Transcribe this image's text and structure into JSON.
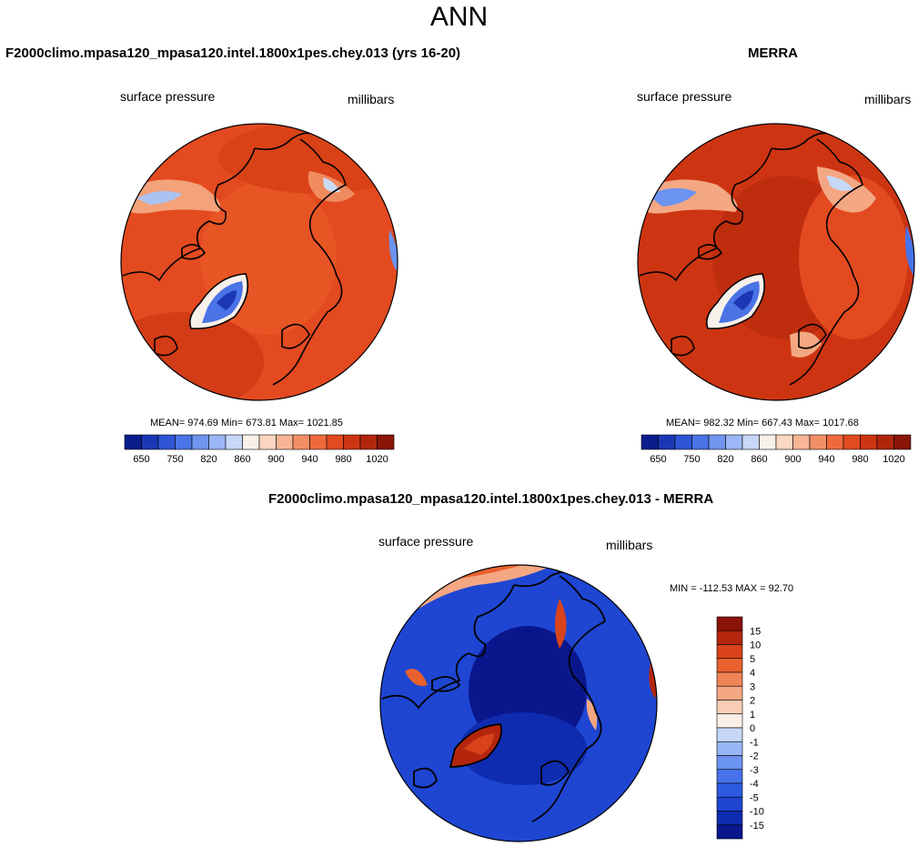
{
  "page": {
    "title": "ANN"
  },
  "panels": {
    "model": {
      "title": "F2000climo.mpasa120_mpasa120.intel.1800x1pes.chey.013 (yrs 16-20)",
      "left_label": "surface pressure",
      "right_label": "millibars",
      "stats": "MEAN= 974.69  Min= 673.81  Max= 1021.85"
    },
    "obs": {
      "title": "MERRA",
      "left_label": "surface pressure",
      "right_label": "millibars",
      "stats": "MEAN= 982.32  Min= 667.43  Max= 1017.68"
    },
    "diff": {
      "title": "F2000climo.mpasa120_mpasa120.intel.1800x1pes.chey.013 - MERRA",
      "left_label": "surface pressure",
      "right_label": "millibars",
      "stats": "MIN = -112.53 MAX =  92.70"
    }
  },
  "colors": {
    "abs_scale": [
      "#0b1d8c",
      "#1b37b5",
      "#2e55d6",
      "#4a73e6",
      "#7095ee",
      "#9ab6f4",
      "#c7d7f7",
      "#f8f1ea",
      "#fbd6c1",
      "#f7b595",
      "#f38f66",
      "#ee6a3d",
      "#e34a20",
      "#cd3512",
      "#b0260c",
      "#8a1608"
    ],
    "diff_scale": [
      "#0a168c",
      "#0f2cb0",
      "#1e46d2",
      "#2d5ae0",
      "#4672ea",
      "#6b93f0",
      "#98b6f4",
      "#c6d8f8",
      "#fbeee6",
      "#f9cdb5",
      "#f4a783",
      "#ef8457",
      "#e9612f",
      "#d9431b",
      "#b4250e",
      "#8a1206"
    ],
    "land_outline": "#000000"
  },
  "chart_data": [
    {
      "type": "heatmap",
      "name": "model",
      "projection": "north polar stereographic",
      "title": "F2000climo.mpasa120_mpasa120.intel.1800x1pes.chey.013 (yrs 16-20)",
      "variable": "surface pressure",
      "units": "millibars",
      "mean": 974.69,
      "min": 673.81,
      "max": 1021.85,
      "colorbar": {
        "orientation": "horizontal",
        "levels": [
          650,
          700,
          750,
          800,
          820,
          840,
          860,
          880,
          900,
          920,
          940,
          960,
          980,
          1000,
          1020
        ],
        "tick_labels": [
          "650",
          "750",
          "820",
          "860",
          "900",
          "940",
          "980",
          "1020"
        ]
      }
    },
    {
      "type": "heatmap",
      "name": "obs",
      "projection": "north polar stereographic",
      "title": "MERRA",
      "variable": "surface pressure",
      "units": "millibars",
      "mean": 982.32,
      "min": 667.43,
      "max": 1017.68,
      "colorbar": {
        "orientation": "horizontal",
        "levels": [
          650,
          700,
          750,
          800,
          820,
          840,
          860,
          880,
          900,
          920,
          940,
          960,
          980,
          1000,
          1020
        ],
        "tick_labels": [
          "650",
          "750",
          "820",
          "860",
          "900",
          "940",
          "980",
          "1020"
        ]
      }
    },
    {
      "type": "heatmap",
      "name": "diff",
      "projection": "north polar stereographic",
      "title": "F2000climo.mpasa120_mpasa120.intel.1800x1pes.chey.013 - MERRA",
      "variable": "surface pressure",
      "units": "millibars",
      "min": -112.53,
      "max": 92.7,
      "colorbar": {
        "orientation": "vertical",
        "levels": [
          -15,
          -10,
          -5,
          -4,
          -3,
          -2,
          -1,
          0,
          1,
          2,
          3,
          4,
          5,
          10,
          15
        ],
        "tick_labels": [
          "15",
          "10",
          "5",
          "4",
          "3",
          "2",
          "1",
          "0",
          "-1",
          "-2",
          "-3",
          "-4",
          "-5",
          "-10",
          "-15"
        ]
      }
    }
  ]
}
